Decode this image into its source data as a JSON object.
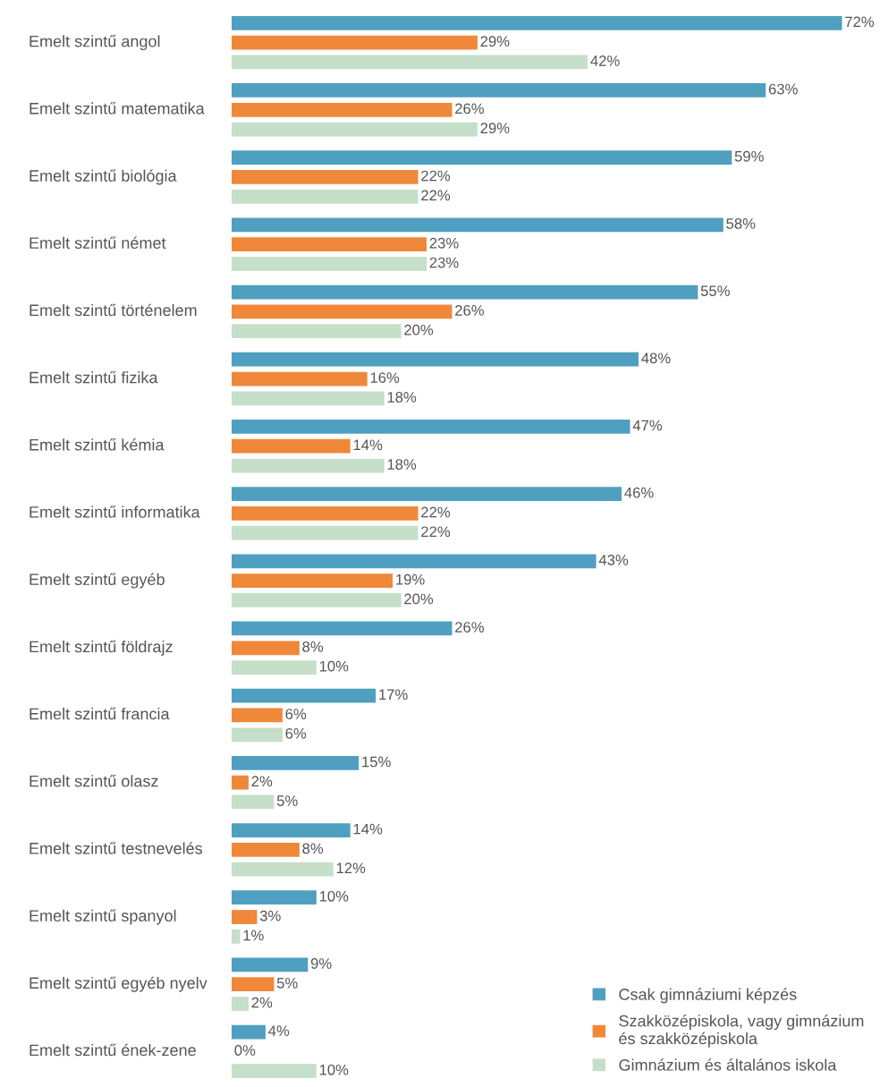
{
  "chart_data": {
    "type": "bar",
    "orientation": "horizontal",
    "legend": "bottom right",
    "grid": false,
    "tick_labels": "y",
    "categories": [
      "Emelt szintű angol",
      "Emelt szintű matematika",
      "Emelt szintű biológia",
      "Emelt szintű német",
      "Emelt szintű történelem",
      "Emelt szintű fizika",
      "Emelt szintű kémia",
      "Emelt szintű informatika",
      "Emelt szintű egyéb",
      "Emelt szintű földrajz",
      "Emelt szintű francia",
      "Emelt szintű olasz",
      "Emelt szintű testnevelés",
      "Emelt szintű spanyol",
      "Emelt szintű egyéb nyelv",
      "Emelt szintű ének-zene"
    ],
    "series": [
      {
        "name": "Csak gimnáziumi képzés",
        "color": "#4f9fc0",
        "values": [
          72,
          63,
          59,
          58,
          55,
          48,
          47,
          46,
          43,
          26,
          17,
          15,
          14,
          10,
          9,
          4
        ],
        "value_labels": [
          "72%",
          "63%",
          "59%",
          "58%",
          "55%",
          "48%",
          "47%",
          "46%",
          "43%",
          "26%",
          "17%",
          "15%",
          "14%",
          "10%",
          "9%",
          "4%"
        ]
      },
      {
        "name": "Szakközépiskola, vagy gimnázium\nés szakközépiskola",
        "color": "#f0883a",
        "values": [
          29,
          26,
          22,
          23,
          26,
          16,
          14,
          22,
          19,
          8,
          6,
          2,
          8,
          3,
          5,
          0
        ],
        "value_labels": [
          "29%",
          "26%",
          "22%",
          "23%",
          "26%",
          "16%",
          "14%",
          "22%",
          "19%",
          "8%",
          "6%",
          "2%",
          "8%",
          "3%",
          "5%",
          "0%"
        ]
      },
      {
        "name": "Gimnázium és általános iskola",
        "color": "#c5dfc8",
        "values": [
          42,
          29,
          22,
          23,
          20,
          18,
          18,
          22,
          20,
          10,
          6,
          5,
          12,
          1,
          2,
          10
        ],
        "value_labels": [
          "42%",
          "29%",
          "22%",
          "23%",
          "20%",
          "18%",
          "18%",
          "22%",
          "20%",
          "10%",
          "6%",
          "5%",
          "12%",
          "1%",
          "2%",
          "10%"
        ]
      }
    ]
  }
}
